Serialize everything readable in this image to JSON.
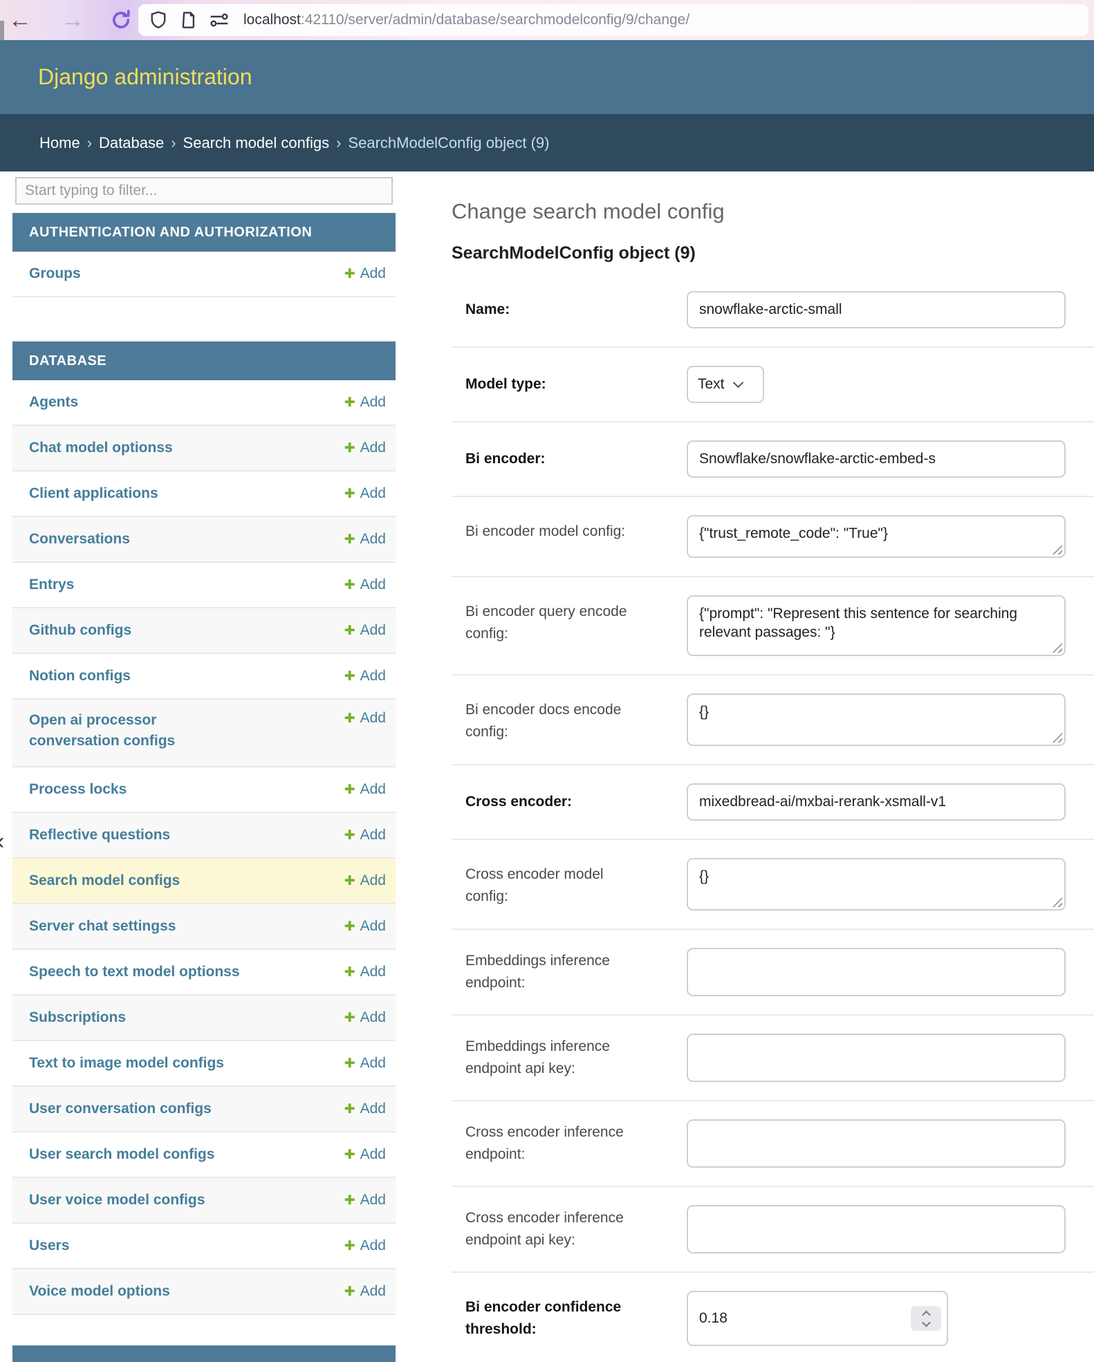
{
  "browser": {
    "url_host": "localhost",
    "url_path": ":42110/server/admin/database/searchmodelconfig/9/change/"
  },
  "icons": {
    "back_arrow": "←",
    "forward_arrow": "→",
    "edge_chevron": "‹",
    "add_plus": "✚"
  },
  "header": {
    "title": "Django administration"
  },
  "breadcrumbs": {
    "items": [
      "Home",
      "Database",
      "Search model configs"
    ],
    "current": "SearchModelConfig object (9)",
    "separator": "›"
  },
  "sidebar": {
    "filter_placeholder": "Start typing to filter...",
    "add_label": "Add",
    "sections": [
      {
        "title": "AUTHENTICATION AND AUTHORIZATION",
        "items": [
          {
            "label": "Groups"
          }
        ],
        "trailing_empty_row": true
      },
      {
        "title": "DATABASE",
        "items": [
          {
            "label": "Agents"
          },
          {
            "label": "Chat model optionss"
          },
          {
            "label": "Client applications"
          },
          {
            "label": "Conversations"
          },
          {
            "label": "Entrys"
          },
          {
            "label": "Github configs"
          },
          {
            "label": "Notion configs"
          },
          {
            "label": "Open ai processor\nconversation configs",
            "two_line": true
          },
          {
            "label": "Process locks"
          },
          {
            "label": "Reflective questions"
          },
          {
            "label": "Search model configs",
            "selected": true
          },
          {
            "label": "Server chat settingss"
          },
          {
            "label": "Speech to text model optionss"
          },
          {
            "label": "Subscriptions"
          },
          {
            "label": "Text to image model configs"
          },
          {
            "label": "User conversation configs"
          },
          {
            "label": "User search model configs"
          },
          {
            "label": "User voice model configs"
          },
          {
            "label": "Users"
          },
          {
            "label": "Voice model options"
          }
        ]
      }
    ]
  },
  "main": {
    "page_title": "Change search model config",
    "object_title": "SearchModelConfig object (9)",
    "fields": [
      {
        "label": "Name:",
        "required": true,
        "type": "text",
        "value": "snowflake-arctic-small"
      },
      {
        "label": "Model type:",
        "required": true,
        "type": "select",
        "value": "Text"
      },
      {
        "label": "Bi encoder:",
        "required": true,
        "type": "text",
        "value": "Snowflake/snowflake-arctic-embed-s"
      },
      {
        "label": "Bi encoder model config:",
        "required": false,
        "type": "textarea",
        "value": "{\"trust_remote_code\": \"True\"}"
      },
      {
        "label": "Bi encoder query encode\nconfig:",
        "required": false,
        "type": "textarea",
        "value": "{\"prompt\": \"Represent this sentence for searching relevant passages: \"}"
      },
      {
        "label": "Bi encoder docs encode\nconfig:",
        "required": false,
        "type": "textarea",
        "value": "{}"
      },
      {
        "label": "Cross encoder:",
        "required": true,
        "type": "text",
        "value": "mixedbread-ai/mxbai-rerank-xsmall-v1"
      },
      {
        "label": "Cross encoder model\nconfig:",
        "required": false,
        "type": "textarea",
        "value": "{}"
      },
      {
        "label": "Embeddings inference\nendpoint:",
        "required": false,
        "type": "text-tall",
        "value": ""
      },
      {
        "label": "Embeddings inference\nendpoint api key:",
        "required": false,
        "type": "text-tall",
        "value": ""
      },
      {
        "label": "Cross encoder inference\nendpoint:",
        "required": false,
        "type": "text-tall",
        "value": ""
      },
      {
        "label": "Cross encoder inference\nendpoint api key:",
        "required": false,
        "type": "text-tall",
        "value": ""
      },
      {
        "label": "Bi encoder confidence\nthreshold:",
        "required": true,
        "type": "number",
        "value": "0.18"
      }
    ]
  },
  "colors": {
    "header_bg": "#49738e",
    "header_title": "#f5dd5b",
    "breadcrumb_bg": "#2e4a5c",
    "caption_bg": "#4e7b99",
    "link": "#447e9b",
    "add_green": "#72b32c",
    "selected_row": "#fcf8d5",
    "row_alt": "#f8f8f8"
  }
}
